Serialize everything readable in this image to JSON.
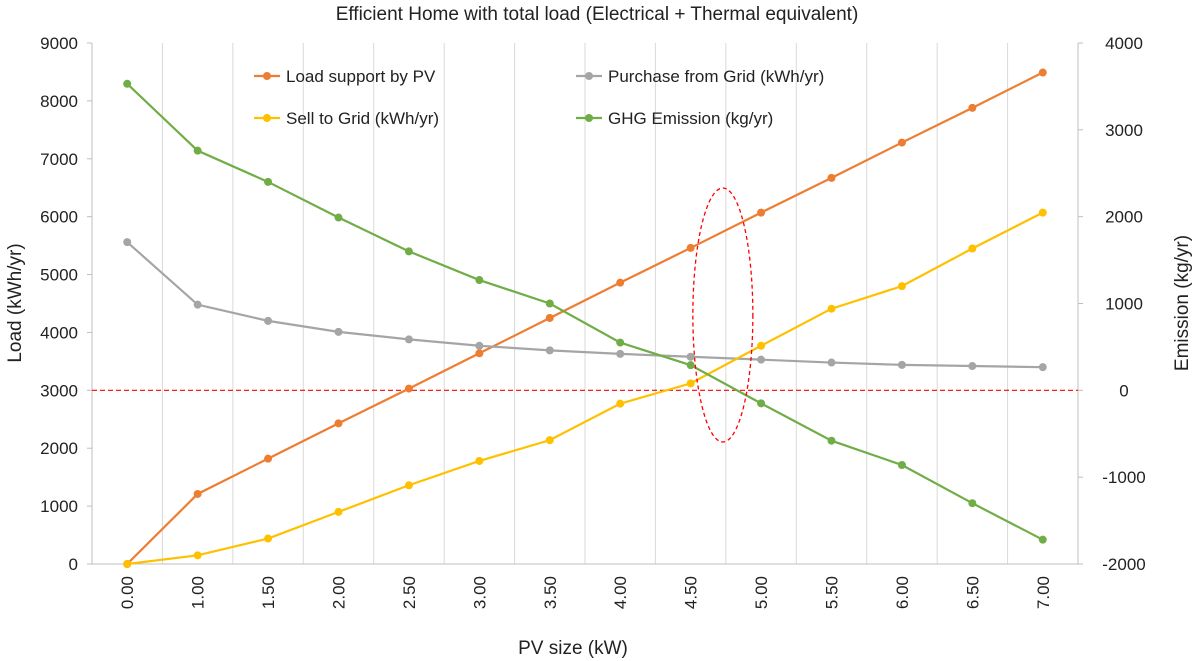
{
  "chart_data": {
    "type": "line",
    "title": "Efficient Home with total load (Electrical + Thermal equivalent)",
    "xlabel": "PV size (kW)",
    "ylabel": "Load (kWh/yr)",
    "y2label": "Emission (kg/yr)",
    "categories": [
      "0.00",
      "1.00",
      "1.50",
      "2.00",
      "2.50",
      "3.00",
      "3.50",
      "4.00",
      "4.50",
      "5.00",
      "5.50",
      "6.00",
      "6.50",
      "7.00"
    ],
    "ylim": [
      0,
      9000
    ],
    "y2lim": [
      -2000,
      4000
    ],
    "yticks": [
      "0",
      "1000",
      "2000",
      "3000",
      "4000",
      "5000",
      "6000",
      "7000",
      "8000",
      "9000"
    ],
    "y2ticks": [
      "-2000",
      "-1000",
      "0",
      "1000",
      "2000",
      "3000",
      "4000"
    ],
    "series": [
      {
        "name": "Load support by PV",
        "axis": "left",
        "color": "#ED7D31",
        "values": [
          0,
          1210,
          1820,
          2430,
          3030,
          3640,
          4250,
          4860,
          5460,
          6070,
          6670,
          7280,
          7880,
          8490
        ]
      },
      {
        "name": "Purchase from Grid (kWh/yr)",
        "axis": "left",
        "color": "#A5A5A5",
        "values": [
          5560,
          4480,
          4200,
          4010,
          3880,
          3770,
          3690,
          3630,
          3580,
          3530,
          3480,
          3440,
          3420,
          3400
        ]
      },
      {
        "name": "Sell to Grid (kWh/yr)",
        "axis": "left",
        "color": "#FFC000",
        "values": [
          0,
          150,
          440,
          900,
          1360,
          1780,
          2140,
          2770,
          3120,
          3770,
          4410,
          4800,
          5450,
          6070
        ]
      },
      {
        "name": "GHG Emission (kg/yr)",
        "axis": "right",
        "color": "#70AD47",
        "values": [
          3530,
          2760,
          2400,
          1990,
          1600,
          1270,
          1000,
          550,
          290,
          -150,
          -580,
          -860,
          -1300,
          -1720
        ]
      }
    ],
    "reference_line": {
      "axis": "right",
      "value": 0,
      "color": "#FF0000",
      "style": "dashed"
    },
    "highlight": {
      "shape": "ellipse",
      "color": "#FF0000",
      "style": "dashed",
      "around_category": "4.50–5.00"
    }
  }
}
